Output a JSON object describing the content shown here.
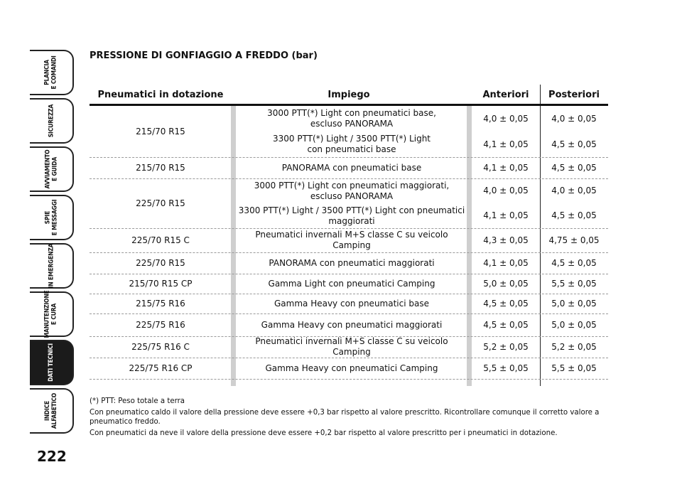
{
  "sidebar": {
    "tabs": [
      {
        "label": "PLANCIA\nE COMANDI"
      },
      {
        "label": "SICUREZZA"
      },
      {
        "label": "AVVIAMENTO\nE GUIDA"
      },
      {
        "label": "SPIE\nE MESSAGGI"
      },
      {
        "label": "IN EMERGENZA"
      },
      {
        "label": "MANUTENZIONE\nE CURA"
      },
      {
        "label": "DATI TECNICI"
      },
      {
        "label": "INDICE\nALFABETICO"
      }
    ],
    "page_number": "222"
  },
  "title": "PRESSIONE DI GONFIAGGIO A FREDDO (bar)",
  "table": {
    "headers": [
      "Pneumatici in dotazione",
      "Impiego",
      "Anteriori",
      "Posteriori"
    ],
    "groups": [
      {
        "tyre": "215/70 R15",
        "rows": [
          {
            "use": "3000 PTT(*) Light con pneumatici base,\nescluso PANORAMA",
            "front": "4,0 ± 0,05",
            "rear": "4,0 ± 0,05"
          },
          {
            "use": "3300 PTT(*) Light / 3500 PTT(*) Light\ncon pneumatici base",
            "front": "4,1 ± 0,05",
            "rear": "4,5 ± 0,05"
          }
        ]
      },
      {
        "tyre": "215/70 R15",
        "rows": [
          {
            "use": "PANORAMA con pneumatici base",
            "front": "4,1 ± 0,05",
            "rear": "4,5 ± 0,05"
          }
        ]
      },
      {
        "tyre": "225/70 R15",
        "rows": [
          {
            "use": "3000 PTT(*) Light con pneumatici maggiorati,\nescluso PANORAMA",
            "front": "4,0 ± 0,05",
            "rear": "4,0 ± 0,05"
          },
          {
            "use": "3300 PTT(*) Light / 3500 PTT(*) Light con pneumatici\nmaggiorati",
            "front": "4,1 ± 0,05",
            "rear": "4,5 ± 0,05"
          }
        ]
      },
      {
        "tyre": "225/70 R15 C",
        "rows": [
          {
            "use": "Pneumatici invernali M+S classe C su veicolo Camping",
            "front": "4,3 ± 0,05",
            "rear": "4,75 ± 0,05"
          }
        ]
      },
      {
        "tyre": "225/70 R15",
        "rows": [
          {
            "use": "PANORAMA con pneumatici maggiorati",
            "front": "4,1 ± 0,05",
            "rear": "4,5 ± 0,05"
          }
        ]
      },
      {
        "tyre": "215/70 R15 CP",
        "rows": [
          {
            "use": "Gamma Light con pneumatici Camping",
            "front": "5,0 ± 0,05",
            "rear": "5,5 ± 0,05"
          }
        ]
      },
      {
        "tyre": "215/75 R16",
        "rows": [
          {
            "use": "Gamma Heavy con pneumatici base",
            "front": "4,5 ± 0,05",
            "rear": "5,0 ± 0,05"
          }
        ]
      },
      {
        "tyre": "225/75 R16",
        "rows": [
          {
            "use": "Gamma Heavy con pneumatici maggiorati",
            "front": "4,5 ± 0,05",
            "rear": "5,0 ± 0,05"
          }
        ]
      },
      {
        "tyre": "225/75 R16 C",
        "rows": [
          {
            "use": "Pneumatici invernali M+S classe C su veicolo Camping",
            "front": "5,2 ± 0,05",
            "rear": "5,2 ± 0,05"
          }
        ]
      },
      {
        "tyre": "225/75 R16 CP",
        "rows": [
          {
            "use": "Gamma Heavy con pneumatici Camping",
            "front": "5,5 ± 0,05",
            "rear": "5,5 ± 0,05"
          }
        ]
      }
    ]
  },
  "notes": [
    "(*) PTT: Peso totale a terra",
    "Con pneumatico caldo il valore della pressione deve essere +0,3 bar rispetto al valore prescritto. Ricontrollare comunque il corretto valore a pneumatico freddo.",
    "Con pneumatici da neve il valore della pressione deve essere +0,2 bar rispetto al valore prescritto per i pneumatici in dotazione."
  ]
}
